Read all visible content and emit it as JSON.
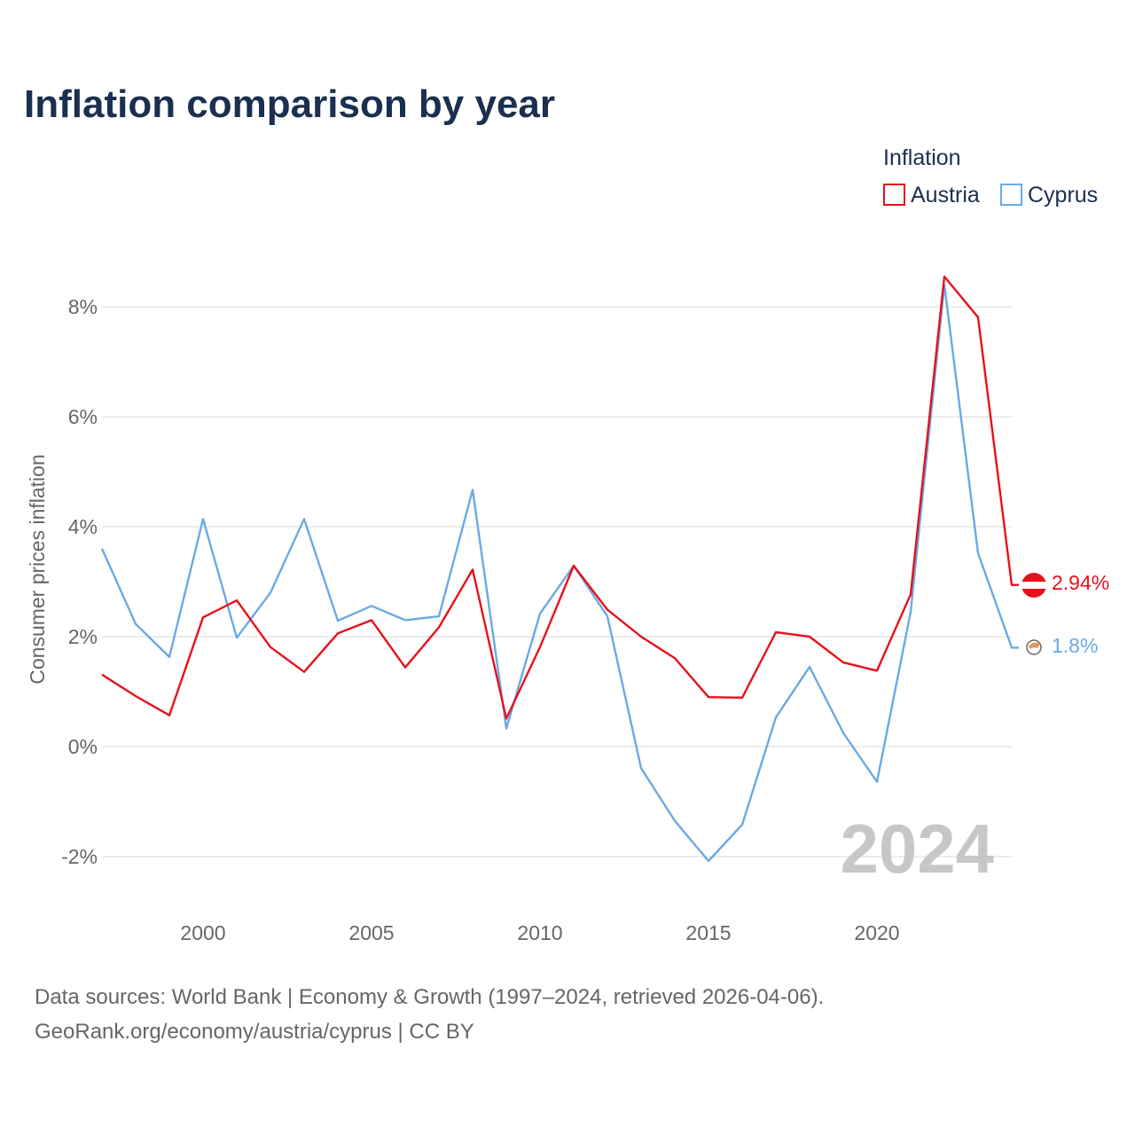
{
  "header": {
    "title": "Inflation comparison by year"
  },
  "legend": {
    "title": "Inflation",
    "items": [
      {
        "label": "Austria",
        "color": "#e8101a"
      },
      {
        "label": "Cyprus",
        "color": "#6aaae4"
      }
    ]
  },
  "footer": {
    "line1": "Data sources: World Bank | Economy & Growth (1997–2024, retrieved 2026-04-06).",
    "line2": "GeoRank.org/economy/austria/cyprus | CC BY"
  },
  "watermark_year": "2024",
  "chart_data": {
    "type": "line",
    "title": "Inflation comparison by year",
    "xlabel": "",
    "ylabel": "Consumer prices inflation",
    "xlim": [
      1997,
      2024
    ],
    "ylim": [
      -3,
      9
    ],
    "x_ticks": [
      2000,
      2005,
      2010,
      2015,
      2020
    ],
    "x_tick_labels": [
      "2000",
      "2005",
      "2010",
      "2015",
      "2020"
    ],
    "y_ticks": [
      -2,
      0,
      2,
      4,
      6,
      8
    ],
    "y_tick_labels": [
      "-2%",
      "0%",
      "2%",
      "4%",
      "6%",
      "8%"
    ],
    "grid": true,
    "legend_position": "top-right",
    "x": [
      1997,
      1998,
      1999,
      2000,
      2001,
      2002,
      2003,
      2004,
      2005,
      2006,
      2007,
      2008,
      2009,
      2010,
      2011,
      2012,
      2013,
      2014,
      2015,
      2016,
      2017,
      2018,
      2019,
      2020,
      2021,
      2022,
      2023,
      2024
    ],
    "series": [
      {
        "name": "Austria",
        "color": "#e8101a",
        "end_label": "2.94%",
        "values": [
          1.31,
          0.92,
          0.57,
          2.35,
          2.66,
          1.81,
          1.36,
          2.06,
          2.3,
          1.44,
          2.17,
          3.22,
          0.51,
          1.81,
          3.29,
          2.49,
          2.0,
          1.61,
          0.9,
          0.89,
          2.08,
          2.0,
          1.53,
          1.38,
          2.77,
          8.55,
          7.81,
          2.94
        ]
      },
      {
        "name": "Cyprus",
        "color": "#6aaae4",
        "end_label": "1.8%",
        "values": [
          3.6,
          2.23,
          1.63,
          4.14,
          1.98,
          2.8,
          4.14,
          2.29,
          2.56,
          2.3,
          2.37,
          4.67,
          0.33,
          2.42,
          3.29,
          2.37,
          -0.39,
          -1.35,
          -2.08,
          -1.42,
          0.53,
          1.45,
          0.25,
          -0.64,
          2.45,
          8.4,
          3.52,
          1.8
        ]
      }
    ]
  }
}
